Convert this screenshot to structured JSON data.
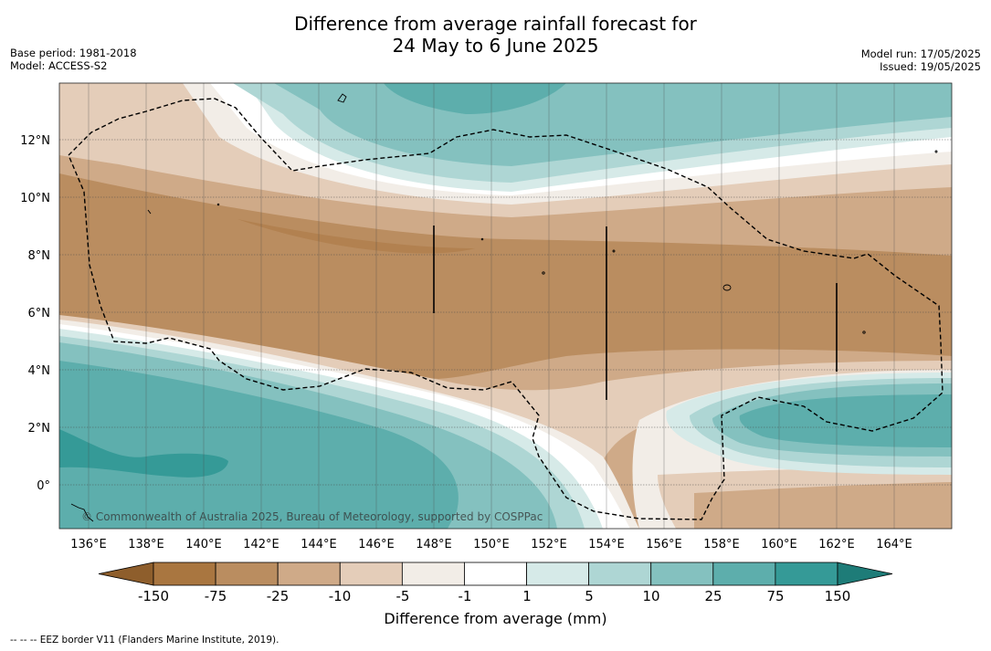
{
  "title": {
    "line1": "Difference from average rainfall forecast for",
    "line2": "24 May to 6 June 2025"
  },
  "meta_left": {
    "base_period": "Base period: 1981-2018",
    "model": "Model: ACCESS-S2"
  },
  "meta_right": {
    "model_run": "Model run: 17/05/2025",
    "issued": "Issued: 19/05/2025"
  },
  "map": {
    "lon_range": [
      135,
      166
    ],
    "lat_range": [
      -1.5,
      14
    ],
    "lon_ticks": [
      "136°E",
      "138°E",
      "140°E",
      "142°E",
      "144°E",
      "146°E",
      "148°E",
      "150°E",
      "152°E",
      "154°E",
      "156°E",
      "158°E",
      "160°E",
      "162°E",
      "164°E"
    ],
    "lat_ticks": [
      "12°N",
      "10°N",
      "8°N",
      "6°N",
      "4°N",
      "2°N",
      "0°"
    ],
    "copyright": "© Commonwealth of Australia 2025, Bureau of Meteorology, supported by COSPPac"
  },
  "colorbar": {
    "labels": [
      "-150",
      "-75",
      "-25",
      "-10",
      "-5",
      "-1",
      "1",
      "5",
      "10",
      "25",
      "75",
      "150"
    ],
    "colors": [
      "#a97640",
      "#ba8d60",
      "#cfaa88",
      "#e4cdb9",
      "#f2ede7",
      "#ffffff",
      "#d6eae8",
      "#aed6d4",
      "#84c1bf",
      "#5daeac",
      "#359a97"
    ],
    "under_color": "#8e5e2c",
    "over_color": "#1e7c78",
    "label": "Difference from average (mm)"
  },
  "footnote": "--  --  -- EEZ border V11 (Flanders Marine Institute, 2019)."
}
